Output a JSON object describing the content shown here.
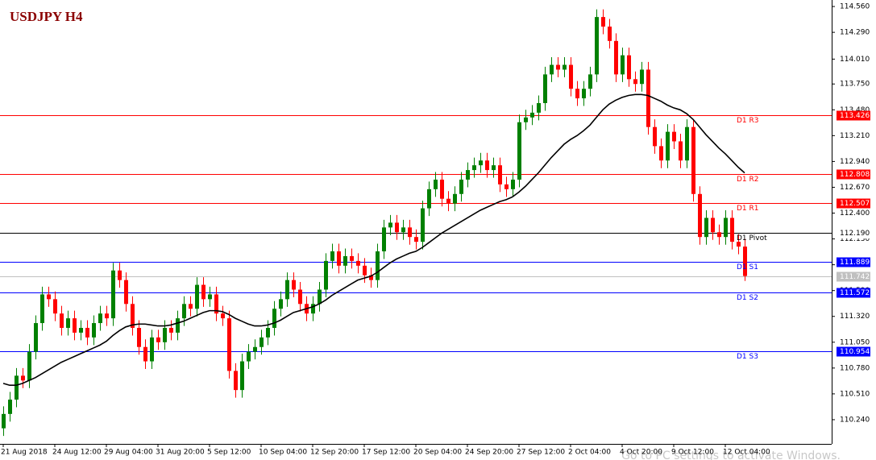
{
  "chart_data": {
    "type": "candlestick",
    "title": "USDJPY H4",
    "watermark": "Go to PC settings to activate Windows.",
    "up_color": "#008000",
    "down_color": "#ff0000",
    "ylim": [
      109.987,
      114.628
    ],
    "yticks": [
      {
        "value": 114.56,
        "label": "114.560"
      },
      {
        "value": 114.29,
        "label": "114.290"
      },
      {
        "value": 114.01,
        "label": "114.010"
      },
      {
        "value": 113.75,
        "label": "113.750"
      },
      {
        "value": 113.48,
        "label": "113.480"
      },
      {
        "value": 113.21,
        "label": "113.210"
      },
      {
        "value": 112.94,
        "label": "112.940"
      },
      {
        "value": 112.67,
        "label": "112.670"
      },
      {
        "value": 112.4,
        "label": "112.400"
      },
      {
        "value": 112.13,
        "label": "112.130"
      },
      {
        "value": 111.86,
        "label": "111.860"
      },
      {
        "value": 111.59,
        "label": "111.590"
      },
      {
        "value": 111.32,
        "label": "111.320"
      },
      {
        "value": 111.05,
        "label": "111.050"
      },
      {
        "value": 110.78,
        "label": "110.780"
      },
      {
        "value": 110.51,
        "label": "110.510"
      },
      {
        "value": 110.24,
        "label": "110.240"
      }
    ],
    "categories": [
      "21 Aug 2018",
      null,
      null,
      null,
      null,
      null,
      null,
      null,
      "24 Aug 12:00",
      null,
      null,
      null,
      null,
      null,
      null,
      null,
      "29 Aug 04:00",
      null,
      null,
      null,
      null,
      null,
      null,
      null,
      "31 Aug 20:00",
      null,
      null,
      null,
      null,
      null,
      null,
      null,
      "5 Sep 12:00",
      null,
      null,
      null,
      null,
      null,
      null,
      null,
      "10 Sep 04:00",
      null,
      null,
      null,
      null,
      null,
      null,
      null,
      "12 Sep 20:00",
      null,
      null,
      null,
      null,
      null,
      null,
      null,
      "17 Sep 12:00",
      null,
      null,
      null,
      null,
      null,
      null,
      null,
      "20 Sep 04:00",
      null,
      null,
      null,
      null,
      null,
      null,
      null,
      "24 Sep 20:00",
      null,
      null,
      null,
      null,
      null,
      null,
      null,
      "27 Sep 12:00",
      null,
      null,
      null,
      null,
      null,
      null,
      null,
      "2 Oct 04:00",
      null,
      null,
      null,
      null,
      null,
      null,
      null,
      "4 Oct 20:00",
      null,
      null,
      null,
      null,
      null,
      null,
      null,
      "9 Oct 12:00",
      null,
      null,
      null,
      null,
      null,
      null,
      null,
      "12 Oct 04:00",
      null,
      null,
      null
    ],
    "open": [
      110.15,
      110.3,
      110.45,
      110.7,
      110.65,
      110.95,
      111.25,
      111.55,
      111.5,
      111.35,
      111.2,
      111.3,
      111.15,
      111.2,
      111.1,
      111.25,
      111.35,
      111.3,
      111.8,
      111.7,
      111.45,
      111.2,
      111.0,
      110.85,
      111.1,
      111.05,
      111.2,
      111.15,
      111.3,
      111.45,
      111.4,
      111.65,
      111.5,
      111.55,
      111.35,
      111.3,
      110.75,
      110.55,
      110.85,
      110.95,
      111.0,
      111.1,
      111.2,
      111.4,
      111.5,
      111.7,
      111.6,
      111.45,
      111.35,
      111.45,
      111.6,
      111.9,
      112.0,
      111.85,
      111.95,
      111.9,
      111.85,
      111.75,
      111.7,
      112.0,
      112.25,
      112.3,
      112.2,
      112.25,
      112.15,
      112.1,
      112.45,
      112.65,
      112.75,
      112.55,
      112.5,
      112.6,
      112.75,
      112.85,
      112.9,
      112.95,
      112.85,
      112.9,
      112.7,
      112.65,
      112.75,
      113.35,
      113.4,
      113.45,
      113.55,
      113.85,
      113.95,
      113.9,
      113.95,
      113.7,
      113.6,
      113.7,
      113.85,
      114.45,
      114.35,
      114.2,
      113.85,
      114.05,
      113.8,
      113.75,
      113.9,
      113.3,
      113.1,
      112.95,
      113.25,
      113.15,
      112.95,
      113.3,
      112.6,
      112.15,
      112.35,
      112.2,
      112.15,
      112.35,
      112.1,
      112.05
    ],
    "high": [
      110.38,
      110.53,
      110.78,
      110.78,
      111.03,
      111.33,
      111.63,
      111.63,
      111.58,
      111.43,
      111.38,
      111.38,
      111.28,
      111.28,
      111.33,
      111.43,
      111.43,
      111.88,
      111.88,
      111.78,
      111.53,
      111.28,
      111.08,
      111.18,
      111.18,
      111.28,
      111.28,
      111.38,
      111.53,
      111.53,
      111.73,
      111.73,
      111.63,
      111.63,
      111.43,
      111.38,
      110.83,
      110.93,
      111.03,
      111.08,
      111.18,
      111.28,
      111.48,
      111.58,
      111.78,
      111.78,
      111.68,
      111.53,
      111.53,
      111.68,
      111.98,
      112.08,
      112.08,
      112.03,
      112.03,
      111.98,
      111.93,
      111.83,
      112.08,
      112.33,
      112.38,
      112.38,
      112.33,
      112.33,
      112.23,
      112.53,
      112.73,
      112.83,
      112.83,
      112.63,
      112.68,
      112.83,
      112.93,
      112.98,
      113.03,
      113.03,
      112.98,
      112.98,
      112.78,
      112.83,
      113.43,
      113.48,
      113.53,
      113.63,
      113.93,
      114.03,
      114.03,
      114.03,
      114.03,
      113.78,
      113.78,
      113.93,
      114.53,
      114.53,
      114.43,
      114.28,
      114.13,
      114.13,
      113.88,
      113.98,
      113.98,
      113.38,
      113.18,
      113.33,
      113.33,
      113.23,
      113.38,
      113.38,
      112.68,
      112.43,
      112.43,
      112.28,
      112.43,
      112.43,
      112.18,
      112.13
    ],
    "low": [
      110.07,
      110.22,
      110.37,
      110.57,
      110.57,
      110.87,
      111.17,
      111.42,
      111.27,
      111.12,
      111.12,
      111.07,
      111.07,
      111.02,
      111.02,
      111.17,
      111.22,
      111.22,
      111.62,
      111.37,
      111.12,
      110.92,
      110.77,
      110.77,
      110.97,
      110.97,
      111.07,
      111.07,
      111.22,
      111.32,
      111.32,
      111.42,
      111.42,
      111.27,
      111.22,
      110.67,
      110.47,
      110.47,
      110.77,
      110.87,
      110.92,
      111.02,
      111.12,
      111.32,
      111.42,
      111.52,
      111.37,
      111.27,
      111.27,
      111.37,
      111.52,
      111.82,
      111.77,
      111.77,
      111.82,
      111.77,
      111.67,
      111.62,
      111.62,
      111.92,
      112.17,
      112.12,
      112.12,
      112.07,
      112.02,
      112.02,
      112.37,
      112.57,
      112.47,
      112.42,
      112.42,
      112.52,
      112.67,
      112.77,
      112.82,
      112.77,
      112.77,
      112.62,
      112.57,
      112.57,
      112.67,
      113.27,
      113.32,
      113.37,
      113.47,
      113.77,
      113.82,
      113.82,
      113.62,
      113.52,
      113.52,
      113.62,
      113.77,
      114.27,
      114.12,
      113.77,
      113.77,
      113.72,
      113.67,
      113.67,
      113.22,
      113.02,
      112.87,
      112.87,
      113.07,
      112.87,
      112.87,
      112.52,
      112.07,
      112.07,
      112.12,
      112.07,
      112.07,
      112.02,
      111.97,
      111.69
    ],
    "close": [
      110.3,
      110.45,
      110.7,
      110.65,
      110.95,
      111.25,
      111.55,
      111.5,
      111.35,
      111.2,
      111.3,
      111.15,
      111.2,
      111.1,
      111.25,
      111.35,
      111.3,
      111.8,
      111.7,
      111.45,
      111.2,
      111.0,
      110.85,
      111.1,
      111.05,
      111.2,
      111.15,
      111.3,
      111.45,
      111.4,
      111.65,
      111.5,
      111.55,
      111.35,
      111.3,
      110.75,
      110.55,
      110.85,
      110.95,
      111.0,
      111.1,
      111.2,
      111.4,
      111.5,
      111.7,
      111.6,
      111.45,
      111.35,
      111.45,
      111.6,
      111.9,
      112.0,
      111.85,
      111.95,
      111.9,
      111.85,
      111.75,
      111.7,
      112.0,
      112.25,
      112.3,
      112.2,
      112.25,
      112.15,
      112.1,
      112.45,
      112.65,
      112.75,
      112.55,
      112.5,
      112.6,
      112.75,
      112.85,
      112.9,
      112.95,
      112.85,
      112.9,
      112.7,
      112.65,
      112.75,
      113.35,
      113.4,
      113.45,
      113.55,
      113.85,
      113.95,
      113.9,
      113.95,
      113.7,
      113.6,
      113.7,
      113.85,
      114.45,
      114.35,
      114.2,
      113.85,
      114.05,
      113.8,
      113.75,
      113.9,
      113.3,
      113.1,
      112.95,
      113.25,
      113.15,
      112.95,
      113.3,
      112.6,
      112.15,
      112.35,
      112.2,
      112.15,
      112.35,
      112.1,
      112.05,
      111.742
    ],
    "ma": {
      "color": "#000000",
      "values": [
        110.62,
        110.6,
        110.6,
        110.62,
        110.65,
        110.68,
        110.72,
        110.76,
        110.8,
        110.84,
        110.87,
        110.9,
        110.93,
        110.96,
        110.99,
        111.02,
        111.06,
        111.12,
        111.17,
        111.21,
        111.23,
        111.24,
        111.24,
        111.23,
        111.22,
        111.22,
        111.23,
        111.25,
        111.27,
        111.3,
        111.33,
        111.36,
        111.38,
        111.38,
        111.37,
        111.34,
        111.3,
        111.27,
        111.24,
        111.22,
        111.22,
        111.23,
        111.25,
        111.28,
        111.32,
        111.36,
        111.38,
        111.4,
        111.42,
        111.45,
        111.49,
        111.54,
        111.58,
        111.62,
        111.66,
        111.7,
        111.72,
        111.74,
        111.78,
        111.83,
        111.88,
        111.92,
        111.95,
        111.98,
        112.0,
        112.04,
        112.09,
        112.14,
        112.19,
        112.23,
        112.27,
        112.31,
        112.35,
        112.39,
        112.43,
        112.46,
        112.49,
        112.52,
        112.54,
        112.57,
        112.62,
        112.68,
        112.75,
        112.82,
        112.9,
        112.98,
        113.05,
        113.12,
        113.17,
        113.21,
        113.26,
        113.32,
        113.4,
        113.48,
        113.54,
        113.58,
        113.61,
        113.63,
        113.64,
        113.64,
        113.63,
        113.6,
        113.57,
        113.53,
        113.5,
        113.48,
        113.44,
        113.38,
        113.3,
        113.22,
        113.15,
        113.08,
        113.02,
        112.95,
        112.88,
        112.82
      ]
    },
    "levels": [
      {
        "name": "D1 R3",
        "value": 113.426,
        "label": "113.426",
        "color": "#ff0000",
        "text_color": "#ffffff"
      },
      {
        "name": "D1 R2",
        "value": 112.808,
        "label": "112.808",
        "color": "#ff0000",
        "text_color": "#ffffff"
      },
      {
        "name": "D1 R1",
        "value": 112.507,
        "label": "112.507",
        "color": "#ff0000",
        "text_color": "#ffffff"
      },
      {
        "name": "D1 Pivot",
        "value": 112.19,
        "label": "112.190",
        "color": "#000000",
        "text_color": "#000000"
      },
      {
        "name": "D1 S1",
        "value": 111.889,
        "label": "111.889",
        "color": "#0000ff",
        "text_color": "#ffffff"
      },
      {
        "name": "D1 S2",
        "value": 111.572,
        "label": "111.572",
        "color": "#0000ff",
        "text_color": "#ffffff"
      },
      {
        "name": "D1 S3",
        "value": 110.954,
        "label": "110.954",
        "color": "#0000ff",
        "text_color": "#ffffff"
      }
    ],
    "last_price": {
      "value": 111.742,
      "label": "111.742",
      "color": "#c0c0c0"
    }
  }
}
